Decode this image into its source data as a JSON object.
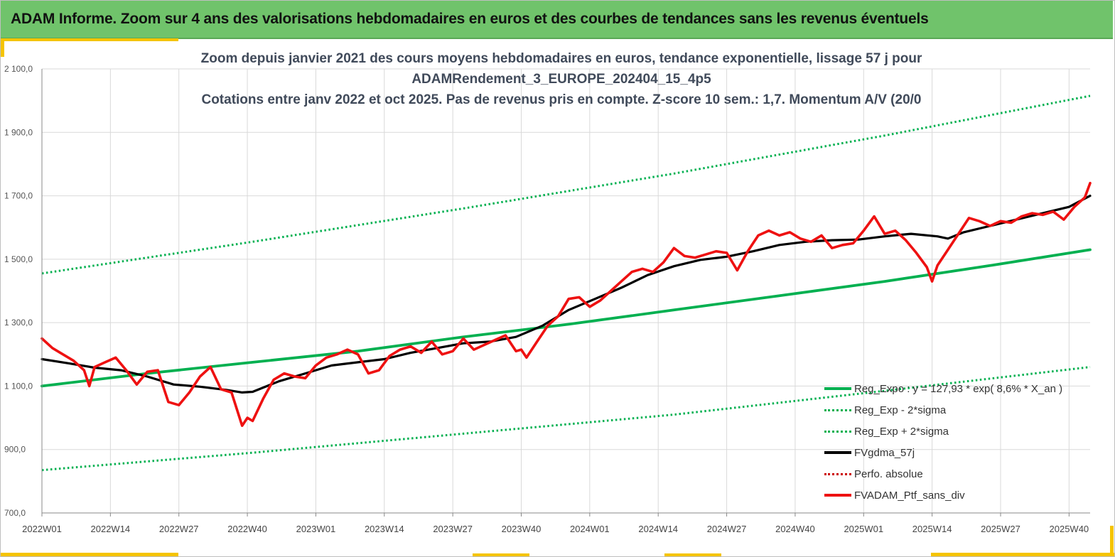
{
  "header": {
    "title": "ADAM Informe. Zoom sur 4 ans des valorisations hebdomadaires en euros et des courbes de tendances sans les revenus éventuels"
  },
  "colors": {
    "header_bg": "#70c36b",
    "accent": "#f5c400",
    "green": "#00b050",
    "black": "#000000",
    "red": "#ee1111"
  },
  "chart_data": {
    "type": "line",
    "title_lines": [
      "Zoom depuis janvier 2021 des cours moyens hebdomadaires  en euros, tendance exponentielle, lissage 57 j pour",
      "ADAMRendement_3_EUROPE_202404_15_4p5",
      "Cotations entre janv 2022 et oct 2025. Pas de revenus pris en compte. Z-score 10 sem.: 1,7. Momentum A/V (20/0"
    ],
    "ylim": [
      700,
      2100
    ],
    "yticks": [
      "700,0",
      "900,0",
      "1 100,0",
      "1 300,0",
      "1 500,0",
      "1 700,0",
      "1 900,0",
      "2 100,0"
    ],
    "ytick_values": [
      700,
      900,
      1100,
      1300,
      1500,
      1700,
      1900,
      2100
    ],
    "xticks": [
      "2022W01",
      "2022W14",
      "2022W27",
      "2022W40",
      "2023W01",
      "2023W14",
      "2023W27",
      "2023W40",
      "2024W01",
      "2024W14",
      "2024W27",
      "2024W40",
      "2025W01",
      "2025W14",
      "2025W27",
      "2025W40"
    ],
    "xtick_weeks": [
      0,
      13,
      26,
      39,
      52,
      65,
      78,
      91,
      104,
      117,
      130,
      143,
      156,
      169,
      182,
      195
    ],
    "x_range_weeks": [
      0,
      199
    ],
    "series": [
      {
        "name": "Reg_Expo : y = 127,93 * exp( 8,6% *  X_an )",
        "style": "solid",
        "color": "#00b050",
        "x": [
          0,
          20,
          40,
          60,
          80,
          100,
          120,
          140,
          160,
          180,
          199
        ],
        "values": [
          1100,
          1140,
          1175,
          1210,
          1255,
          1295,
          1340,
          1385,
          1430,
          1480,
          1530
        ]
      },
      {
        "name": "Reg_Exp - 2*sigma",
        "style": "dotted",
        "color": "#00b050",
        "x": [
          0,
          40,
          80,
          120,
          160,
          199
        ],
        "values": [
          835,
          890,
          950,
          1010,
          1085,
          1160
        ]
      },
      {
        "name": "Reg_Exp + 2*sigma",
        "style": "dotted",
        "color": "#00b050",
        "x": [
          0,
          40,
          80,
          120,
          160,
          199
        ],
        "values": [
          1455,
          1555,
          1660,
          1770,
          1890,
          2015
        ]
      },
      {
        "name": "FVgdma_57j",
        "style": "solid",
        "color": "#000000",
        "x": [
          0,
          5,
          10,
          15,
          20,
          25,
          30,
          35,
          38,
          40,
          45,
          50,
          55,
          60,
          65,
          70,
          75,
          80,
          85,
          90,
          95,
          100,
          105,
          110,
          115,
          120,
          125,
          130,
          135,
          140,
          145,
          150,
          155,
          160,
          165,
          170,
          172,
          175,
          180,
          185,
          190,
          195,
          199
        ],
        "values": [
          1185,
          1172,
          1158,
          1150,
          1130,
          1105,
          1098,
          1088,
          1080,
          1082,
          1115,
          1140,
          1165,
          1175,
          1185,
          1205,
          1220,
          1235,
          1240,
          1255,
          1290,
          1340,
          1375,
          1410,
          1450,
          1478,
          1498,
          1508,
          1525,
          1545,
          1555,
          1560,
          1562,
          1572,
          1580,
          1572,
          1565,
          1585,
          1605,
          1625,
          1645,
          1665,
          1700
        ]
      },
      {
        "name": "Perfo. absolue",
        "style": "dotted",
        "color": "#cc0000",
        "x": [],
        "values": []
      },
      {
        "name": "FVADAM_Ptf_sans_div",
        "style": "solid",
        "color": "#ee1111",
        "x": [
          0,
          2,
          4,
          6,
          8,
          9,
          10,
          12,
          14,
          16,
          18,
          20,
          22,
          24,
          26,
          28,
          30,
          32,
          34,
          36,
          38,
          39,
          40,
          42,
          44,
          46,
          48,
          50,
          52,
          54,
          56,
          58,
          60,
          62,
          64,
          66,
          68,
          70,
          72,
          74,
          76,
          78,
          80,
          82,
          84,
          86,
          88,
          90,
          91,
          92,
          94,
          96,
          98,
          100,
          102,
          104,
          106,
          108,
          110,
          112,
          114,
          116,
          118,
          120,
          122,
          124,
          126,
          128,
          130,
          132,
          134,
          135,
          136,
          138,
          140,
          142,
          144,
          146,
          148,
          150,
          152,
          154,
          156,
          158,
          160,
          162,
          164,
          166,
          168,
          169,
          170,
          172,
          174,
          176,
          178,
          180,
          182,
          184,
          186,
          188,
          190,
          192,
          194,
          196,
          198,
          199
        ],
        "values": [
          1250,
          1220,
          1200,
          1180,
          1150,
          1100,
          1160,
          1175,
          1190,
          1150,
          1105,
          1145,
          1150,
          1050,
          1040,
          1080,
          1130,
          1160,
          1090,
          1080,
          975,
          1000,
          990,
          1060,
          1120,
          1140,
          1130,
          1125,
          1165,
          1190,
          1200,
          1215,
          1200,
          1140,
          1150,
          1195,
          1215,
          1225,
          1205,
          1240,
          1200,
          1210,
          1250,
          1215,
          1230,
          1245,
          1260,
          1210,
          1215,
          1190,
          1240,
          1290,
          1320,
          1375,
          1380,
          1350,
          1370,
          1400,
          1430,
          1460,
          1470,
          1460,
          1490,
          1535,
          1510,
          1505,
          1515,
          1525,
          1520,
          1465,
          1525,
          1550,
          1575,
          1590,
          1575,
          1585,
          1565,
          1555,
          1575,
          1535,
          1545,
          1550,
          1590,
          1635,
          1580,
          1590,
          1560,
          1520,
          1475,
          1430,
          1480,
          1530,
          1580,
          1630,
          1620,
          1605,
          1620,
          1615,
          1635,
          1645,
          1640,
          1650,
          1625,
          1665,
          1695,
          1740
        ]
      }
    ],
    "legend_position": "bottom-right"
  }
}
